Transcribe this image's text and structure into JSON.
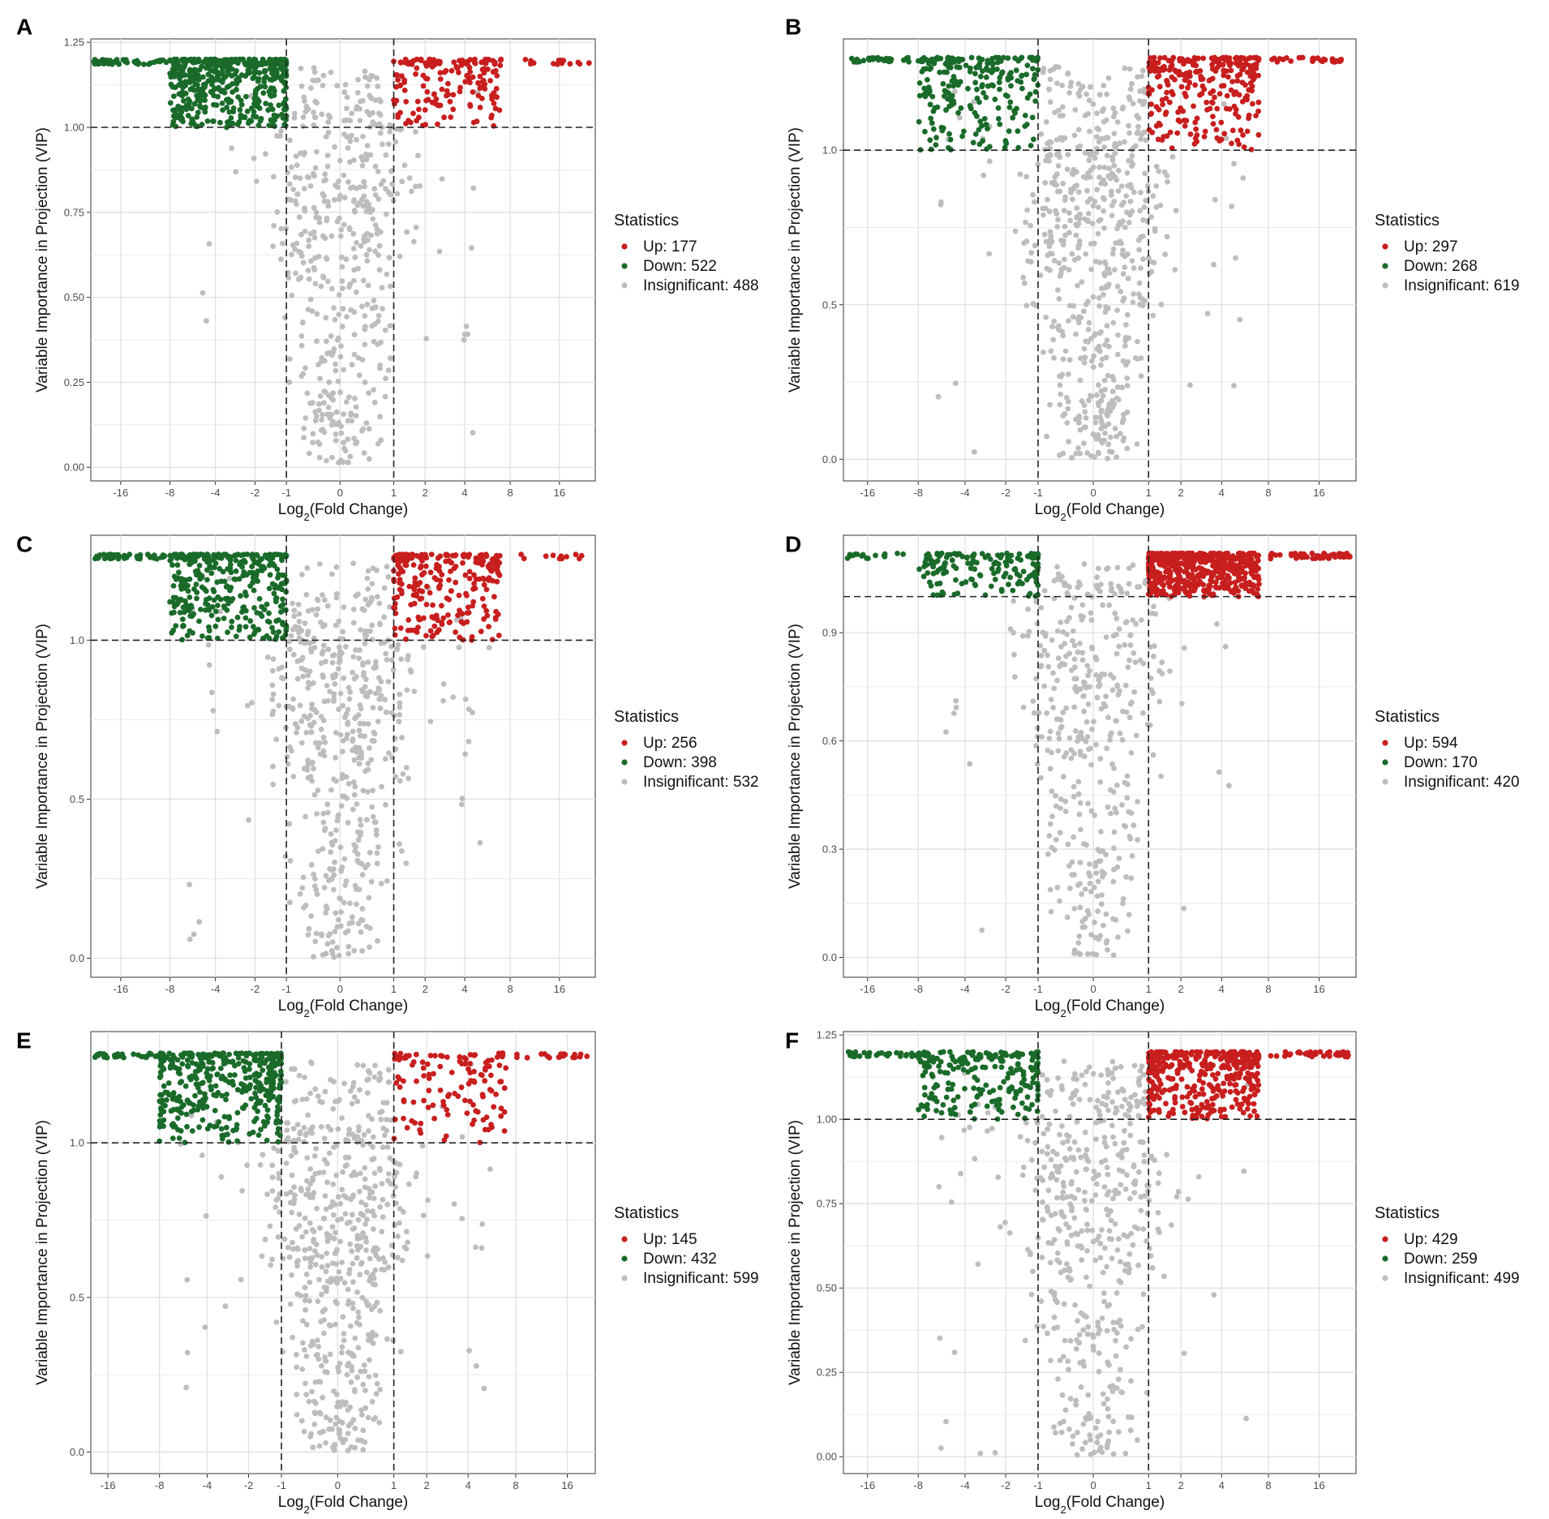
{
  "colors": {
    "up": "#c81e1e",
    "down": "#1a6b2a",
    "insignificant": "#bdbdbd",
    "grid": "#ebebeb",
    "axis": "#333333",
    "dash": "#222222"
  },
  "chart_data": [
    {
      "type": "scatter",
      "panel_label": "A",
      "xlabel": "Log2(Fold Change)",
      "xlabel_base": "Log",
      "xlabel_sub": "2",
      "xlabel_rest": "(Fold Change)",
      "ylabel": "Variable Importance in Projection (VIP)",
      "x_ticks": [
        "-16",
        "-8",
        "-4",
        "-2",
        "-1",
        "0",
        "1",
        "2",
        "4",
        "8",
        "16"
      ],
      "x_tick_values": [
        -16,
        -8,
        -4,
        -2,
        -1,
        0,
        1,
        2,
        4,
        8,
        16
      ],
      "xlim": [
        -24,
        26
      ],
      "y_ticks": [
        "0.00",
        "0.25",
        "0.50",
        "0.75",
        "1.00",
        "1.25"
      ],
      "y_tick_values": [
        0,
        0.25,
        0.5,
        0.75,
        1.0,
        1.25
      ],
      "ylim": [
        -0.04,
        1.26
      ],
      "vip_threshold": 1.0,
      "fc_thresholds": [
        -1,
        1
      ],
      "vip_max": 1.2,
      "legend_title": "Statistics",
      "legend": [
        {
          "label": "Up: 177",
          "group": "up",
          "count": 177
        },
        {
          "label": "Down: 522",
          "group": "down",
          "count": 522
        },
        {
          "label": "Insignificant: 488",
          "group": "insignificant",
          "count": 488
        }
      ]
    },
    {
      "type": "scatter",
      "panel_label": "B",
      "xlabel": "Log2(Fold Change)",
      "xlabel_base": "Log",
      "xlabel_sub": "2",
      "xlabel_rest": "(Fold Change)",
      "ylabel": "Variable Importance in Projection (VIP)",
      "x_ticks": [
        "-16",
        "-8",
        "-4",
        "-2",
        "-1",
        "0",
        "1",
        "2",
        "4",
        "8",
        "16"
      ],
      "x_tick_values": [
        -16,
        -8,
        -4,
        -2,
        -1,
        0,
        1,
        2,
        4,
        8,
        16
      ],
      "xlim": [
        -22,
        26
      ],
      "y_ticks": [
        "0.0",
        "0.5",
        "1.0"
      ],
      "y_tick_values": [
        0,
        0.5,
        1.0
      ],
      "ylim": [
        -0.07,
        1.36
      ],
      "vip_threshold": 1.0,
      "fc_thresholds": [
        -1,
        1
      ],
      "vip_max": 1.3,
      "legend_title": "Statistics",
      "legend": [
        {
          "label": "Up: 297",
          "group": "up",
          "count": 297
        },
        {
          "label": "Down: 268",
          "group": "down",
          "count": 268
        },
        {
          "label": "Insignificant: 619",
          "group": "insignificant",
          "count": 619
        }
      ]
    },
    {
      "type": "scatter",
      "panel_label": "C",
      "xlabel": "Log2(Fold Change)",
      "xlabel_base": "Log",
      "xlabel_sub": "2",
      "xlabel_rest": "(Fold Change)",
      "ylabel": "Variable Importance in Projection (VIP)",
      "x_ticks": [
        "-16",
        "-8",
        "-4",
        "-2",
        "-1",
        "0",
        "1",
        "2",
        "4",
        "8",
        "16"
      ],
      "x_tick_values": [
        -16,
        -8,
        -4,
        -2,
        -1,
        0,
        1,
        2,
        4,
        8,
        16
      ],
      "xlim": [
        -24,
        26
      ],
      "y_ticks": [
        "0.0",
        "0.5",
        "1.0"
      ],
      "y_tick_values": [
        0,
        0.5,
        1.0
      ],
      "ylim": [
        -0.06,
        1.33
      ],
      "vip_threshold": 1.0,
      "fc_thresholds": [
        -1,
        1
      ],
      "vip_max": 1.27,
      "legend_title": "Statistics",
      "legend": [
        {
          "label": "Up: 256",
          "group": "up",
          "count": 256
        },
        {
          "label": "Down: 398",
          "group": "down",
          "count": 398
        },
        {
          "label": "Insignificant: 532",
          "group": "insignificant",
          "count": 532
        }
      ]
    },
    {
      "type": "scatter",
      "panel_label": "D",
      "xlabel": "Log2(Fold Change)",
      "xlabel_base": "Log",
      "xlabel_sub": "2",
      "xlabel_rest": "(Fold Change)",
      "ylabel": "Variable Importance in Projection (VIP)",
      "x_ticks": [
        "-16",
        "-8",
        "-4",
        "-2",
        "-1",
        "0",
        "1",
        "2",
        "4",
        "8",
        "16"
      ],
      "x_tick_values": [
        -16,
        -8,
        -4,
        -2,
        -1,
        0,
        1,
        2,
        4,
        8,
        16
      ],
      "xlim": [
        -22,
        26
      ],
      "y_ticks": [
        "0.0",
        "0.3",
        "0.6",
        "0.9"
      ],
      "y_tick_values": [
        0,
        0.3,
        0.6,
        0.9
      ],
      "ylim": [
        -0.055,
        1.17
      ],
      "vip_threshold": 1.0,
      "fc_thresholds": [
        -1,
        1
      ],
      "vip_max": 1.12,
      "legend_title": "Statistics",
      "legend": [
        {
          "label": "Up: 594",
          "group": "up",
          "count": 594
        },
        {
          "label": "Down: 170",
          "group": "down",
          "count": 170
        },
        {
          "label": "Insignificant: 420",
          "group": "insignificant",
          "count": 420
        }
      ]
    },
    {
      "type": "scatter",
      "panel_label": "E",
      "xlabel": "Log2(Fold Change)",
      "xlabel_base": "Log",
      "xlabel_sub": "2",
      "xlabel_rest": "(Fold Change)",
      "ylabel": "Variable Importance in Projection (VIP)",
      "x_ticks": [
        "-16",
        "-8",
        "-4",
        "-2",
        "-1",
        "0",
        "1",
        "2",
        "4",
        "8",
        "16"
      ],
      "x_tick_values": [
        -16,
        -8,
        -4,
        -2,
        -1,
        0,
        1,
        2,
        4,
        8,
        16
      ],
      "xlim": [
        -20,
        23
      ],
      "y_ticks": [
        "0.0",
        "0.5",
        "1.0"
      ],
      "y_tick_values": [
        0,
        0.5,
        1.0
      ],
      "ylim": [
        -0.07,
        1.36
      ],
      "vip_threshold": 1.0,
      "fc_thresholds": [
        -1,
        1
      ],
      "vip_max": 1.29,
      "legend_title": "Statistics",
      "legend": [
        {
          "label": "Up: 145",
          "group": "up",
          "count": 145
        },
        {
          "label": "Down: 432",
          "group": "down",
          "count": 432
        },
        {
          "label": "Insignificant: 599",
          "group": "insignificant",
          "count": 599
        }
      ]
    },
    {
      "type": "scatter",
      "panel_label": "F",
      "xlabel": "Log2(Fold Change)",
      "xlabel_base": "Log",
      "xlabel_sub": "2",
      "xlabel_rest": "(Fold Change)",
      "ylabel": "Variable Importance in Projection (VIP)",
      "x_ticks": [
        "-16",
        "-8",
        "-4",
        "-2",
        "-1",
        "0",
        "1",
        "2",
        "4",
        "8",
        "16"
      ],
      "x_tick_values": [
        -16,
        -8,
        -4,
        -2,
        -1,
        0,
        1,
        2,
        4,
        8,
        16
      ],
      "xlim": [
        -22,
        26
      ],
      "y_ticks": [
        "0.00",
        "0.25",
        "0.50",
        "0.75",
        "1.00",
        "1.25"
      ],
      "y_tick_values": [
        0,
        0.25,
        0.5,
        0.75,
        1.0,
        1.25
      ],
      "ylim": [
        -0.05,
        1.26
      ],
      "vip_threshold": 1.0,
      "fc_thresholds": [
        -1,
        1
      ],
      "vip_max": 1.2,
      "legend_title": "Statistics",
      "legend": [
        {
          "label": "Up: 429",
          "group": "up",
          "count": 429
        },
        {
          "label": "Down: 259",
          "group": "down",
          "count": 259
        },
        {
          "label": "Insignificant: 499",
          "group": "insignificant",
          "count": 499
        }
      ]
    }
  ]
}
